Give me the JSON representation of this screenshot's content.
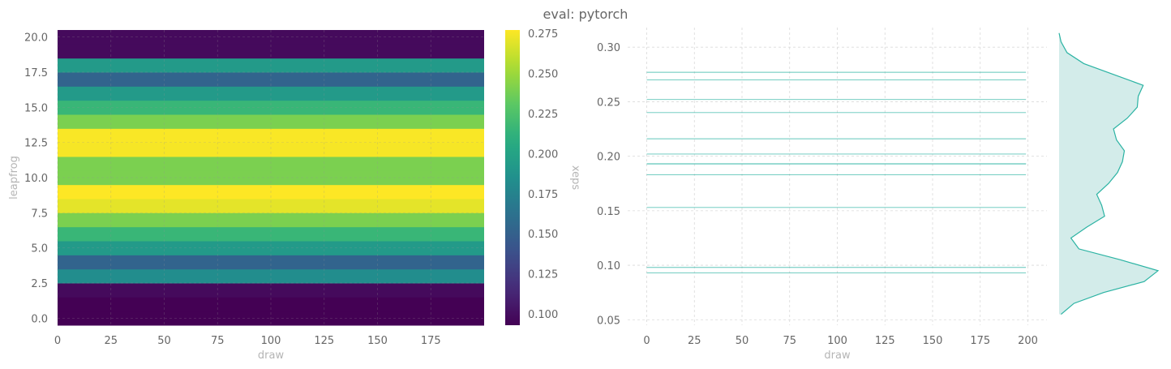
{
  "title": "eval: pytorch",
  "colors": {
    "text": "#666666",
    "axis_label": "#b5b5b5",
    "grid": "#d9d9d9",
    "line": "#2bb3a3",
    "kde_fill": "#d3ecea",
    "kde_line": "#2bb3a3"
  },
  "chart_data": [
    {
      "type": "heatmap",
      "xlabel": "draw",
      "ylabel": "leapfrog",
      "colormap": "viridis",
      "x_range": [
        0,
        200
      ],
      "y_range": [
        -0.5,
        20.5
      ],
      "x_ticks": [
        0,
        25,
        50,
        75,
        100,
        125,
        150,
        175
      ],
      "y_ticks": [
        0.0,
        2.5,
        5.0,
        7.5,
        10.0,
        12.5,
        15.0,
        17.5,
        20.0
      ],
      "rows": [
        0,
        1,
        2,
        3,
        4,
        5,
        6,
        7,
        8,
        9,
        10,
        11,
        12,
        13,
        14,
        15,
        16,
        17,
        18,
        19,
        20
      ],
      "row_values": [
        0.093,
        0.093,
        0.098,
        0.183,
        0.153,
        0.193,
        0.216,
        0.24,
        0.27,
        0.277,
        0.24,
        0.24,
        0.275,
        0.276,
        0.24,
        0.216,
        0.193,
        0.153,
        0.193,
        0.098,
        0.098
      ],
      "colorbar": {
        "label": "xeps",
        "vmin": 0.093,
        "vmax": 0.277,
        "ticks": [
          0.1,
          0.125,
          0.15,
          0.175,
          0.2,
          0.225,
          0.25,
          0.275
        ],
        "tick_labels": [
          "0.100",
          "0.125",
          "0.150",
          "0.175",
          "0.200",
          "0.225",
          "0.250",
          "0.275"
        ]
      }
    },
    {
      "type": "line",
      "xlabel": "draw",
      "ylabel": "",
      "xlim": [
        -10,
        210
      ],
      "ylim": [
        0.045,
        0.318
      ],
      "x_ticks": [
        0,
        25,
        50,
        75,
        100,
        125,
        150,
        175,
        200
      ],
      "y_ticks": [
        0.05,
        0.1,
        0.15,
        0.2,
        0.25,
        0.3
      ],
      "y_tick_labels": [
        "0.05",
        "0.10",
        "0.15",
        "0.20",
        "0.25",
        "0.30"
      ],
      "x_start": 0,
      "x_end": 199,
      "levels": [
        0.093,
        0.098,
        0.153,
        0.183,
        0.193,
        0.193,
        0.193,
        0.202,
        0.216,
        0.24,
        0.252,
        0.27,
        0.277
      ]
    },
    {
      "type": "area",
      "orientation": "horizontal",
      "description_role": "marginal density of xeps",
      "y": [
        0.055,
        0.065,
        0.075,
        0.085,
        0.095,
        0.105,
        0.115,
        0.125,
        0.135,
        0.145,
        0.155,
        0.165,
        0.175,
        0.185,
        0.195,
        0.205,
        0.215,
        0.225,
        0.235,
        0.245,
        0.255,
        0.265,
        0.275,
        0.285,
        0.295,
        0.305,
        0.313
      ],
      "density": [
        0.02,
        0.15,
        0.45,
        0.86,
        1.0,
        0.62,
        0.2,
        0.12,
        0.28,
        0.46,
        0.43,
        0.38,
        0.5,
        0.59,
        0.64,
        0.66,
        0.58,
        0.55,
        0.69,
        0.79,
        0.8,
        0.85,
        0.55,
        0.25,
        0.08,
        0.02,
        0.0
      ]
    }
  ]
}
